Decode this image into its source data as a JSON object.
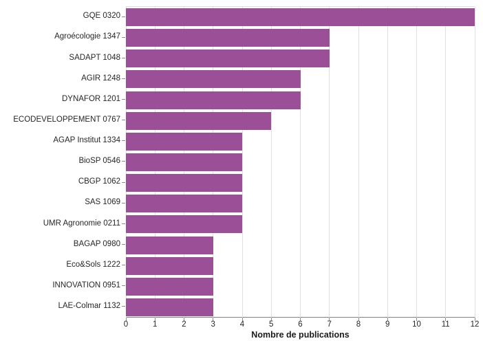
{
  "chart_data": {
    "type": "bar",
    "orientation": "horizontal",
    "title": "",
    "xlabel": "Nombre de publications",
    "ylabel": "",
    "categories": [
      "GQE 0320",
      "Agroécologie 1347",
      "SADAPT 1048",
      "AGIR 1248",
      "DYNAFOR 1201",
      "ECODEVELOPPEMENT 0767",
      "AGAP Institut 1334",
      "BioSP 0546",
      "CBGP 1062",
      "SAS 1069",
      "UMR Agronomie 0211",
      "BAGAP 0980",
      "Eco&Sols 1222",
      "INNOVATION 0951",
      "LAE-Colmar 1132"
    ],
    "values": [
      12,
      7,
      7,
      6,
      6,
      5,
      4,
      4,
      4,
      4,
      4,
      3,
      3,
      3,
      3
    ],
    "xlim": [
      0,
      12
    ],
    "xticks": [
      0,
      1,
      2,
      3,
      4,
      5,
      6,
      7,
      8,
      9,
      10,
      11,
      12
    ],
    "grid": true,
    "legend": false,
    "colors": {
      "bar": "#9A4F96",
      "gridline": "#e0e0e0",
      "axis_line": "#808080",
      "tick_mark": "#8c8c8c",
      "text": "#262626"
    }
  }
}
